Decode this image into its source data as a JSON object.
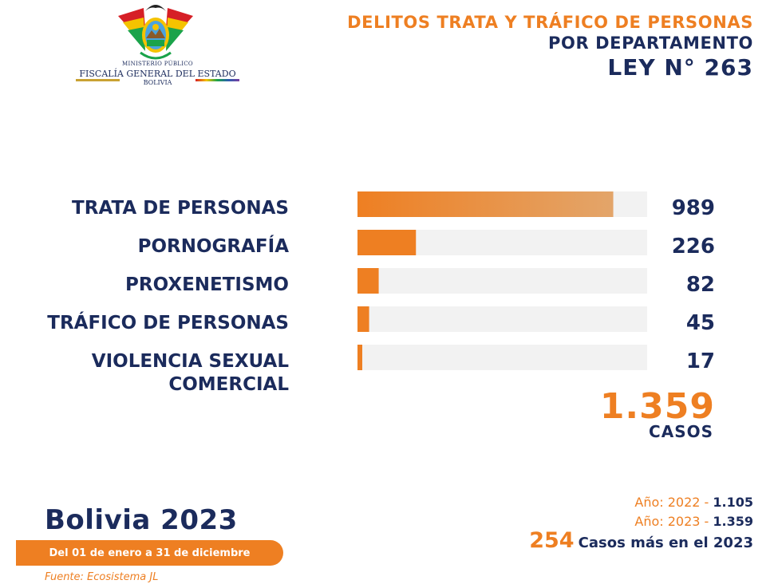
{
  "header": {
    "org_line_1": "MINISTERIO PÚBLICO",
    "org_line_2": "FISCALÍA GENERAL DEL ESTADO",
    "org_line_3": "BOLIVIA",
    "title_line_1": "DELITOS TRATA Y TRÁFICO DE PERSONAS",
    "title_line_2": "POR DEPARTAMENTO",
    "title_line_3": "LEY N° 263"
  },
  "chart_data": {
    "type": "bar",
    "orientation": "horizontal",
    "categories": [
      [
        "TRATA DE PERSONAS"
      ],
      [
        "PORNOGRAFÍA"
      ],
      [
        "PROXENETISMO"
      ],
      [
        "TRÁFICO DE PERSONAS"
      ],
      [
        "VIOLENCIA SEXUAL",
        "COMERCIAL"
      ]
    ],
    "values": [
      989,
      226,
      82,
      45,
      17
    ],
    "value_labels": [
      "989",
      "226",
      "82",
      "45",
      "17"
    ],
    "xlim": [
      0,
      1120
    ],
    "grid": false,
    "bar_color": "#ee7f22",
    "track_color": "#f2f2f2"
  },
  "summary": {
    "total": "1.359",
    "total_unit": "CASOS"
  },
  "footer": {
    "region": "Bolivia 2023",
    "date_range": "Del 01 de enero a 31 de diciembre",
    "source": "Fuente: Ecosistema JL",
    "year_rows": [
      {
        "label": "Año: 2022 - ",
        "value": "1.105"
      },
      {
        "label": "Año: 2023 - ",
        "value": "1.359"
      }
    ],
    "difference_number": "254",
    "difference_text": "Casos más en el 2023"
  },
  "colors": {
    "accent": "#ee7f22",
    "navy": "#1b2b5c"
  }
}
